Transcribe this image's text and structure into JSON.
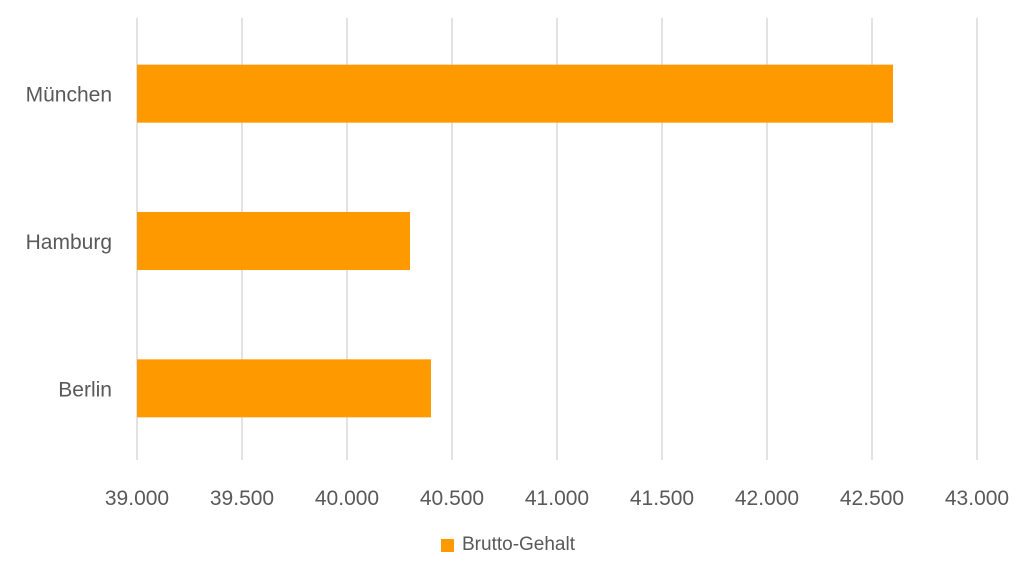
{
  "chart_data": {
    "type": "bar",
    "orientation": "horizontal",
    "categories": [
      "München",
      "Hamburg",
      "Berlin"
    ],
    "series": [
      {
        "name": "Brutto-Gehalt",
        "values": [
          42600,
          40300,
          40400
        ],
        "color": "#ff9900"
      }
    ],
    "xlim": [
      39000,
      43000
    ],
    "x_ticks": [
      39000,
      39500,
      40000,
      40500,
      41000,
      41500,
      42000,
      42500,
      43000
    ],
    "x_tick_labels": [
      "39.000",
      "39.500",
      "40.000",
      "40.500",
      "41.000",
      "41.500",
      "42.000",
      "42.500",
      "43.000"
    ],
    "grid": true,
    "gridline_color": "#d9d9d9",
    "legend_position": "bottom",
    "title": "",
    "xlabel": "",
    "ylabel": ""
  },
  "legend": {
    "label": "Brutto-Gehalt",
    "color": "#ff9900"
  }
}
